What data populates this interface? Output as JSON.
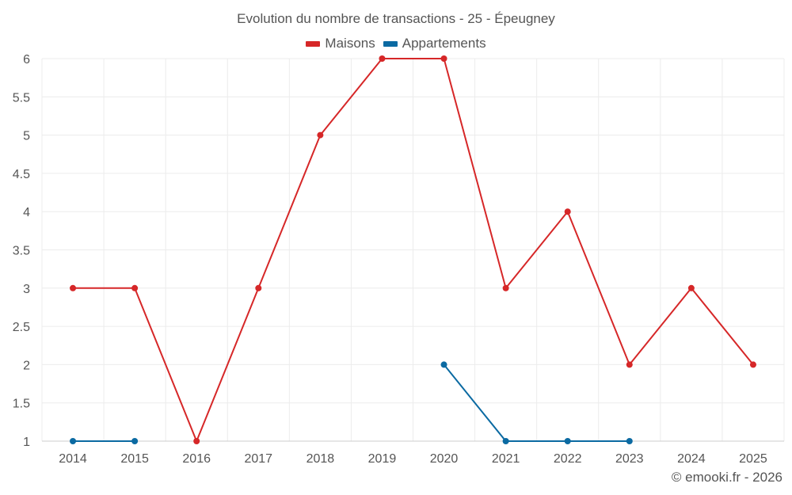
{
  "chart_data": {
    "type": "line",
    "title": "Evolution du nombre de transactions - 25 - Épeugney",
    "categories": [
      "2014",
      "2015",
      "2016",
      "2017",
      "2018",
      "2019",
      "2020",
      "2021",
      "2022",
      "2023",
      "2024",
      "2025"
    ],
    "ylim": [
      1,
      6
    ],
    "yticks": [
      "1",
      "1.5",
      "2",
      "2.5",
      "3",
      "3.5",
      "4",
      "4.5",
      "5",
      "5.5",
      "6"
    ],
    "grid": true,
    "legend_position": "top-center",
    "series": [
      {
        "name": "Maisons",
        "color": "#d62728",
        "values": [
          3,
          3,
          1,
          3,
          5,
          6,
          6,
          3,
          4,
          2,
          3,
          2
        ]
      },
      {
        "name": "Appartements",
        "color": "#0b6aa2",
        "values": [
          1,
          1,
          null,
          null,
          null,
          null,
          2,
          1,
          1,
          1,
          null,
          null
        ]
      }
    ]
  },
  "credit": "© emooki.fr - 2026"
}
